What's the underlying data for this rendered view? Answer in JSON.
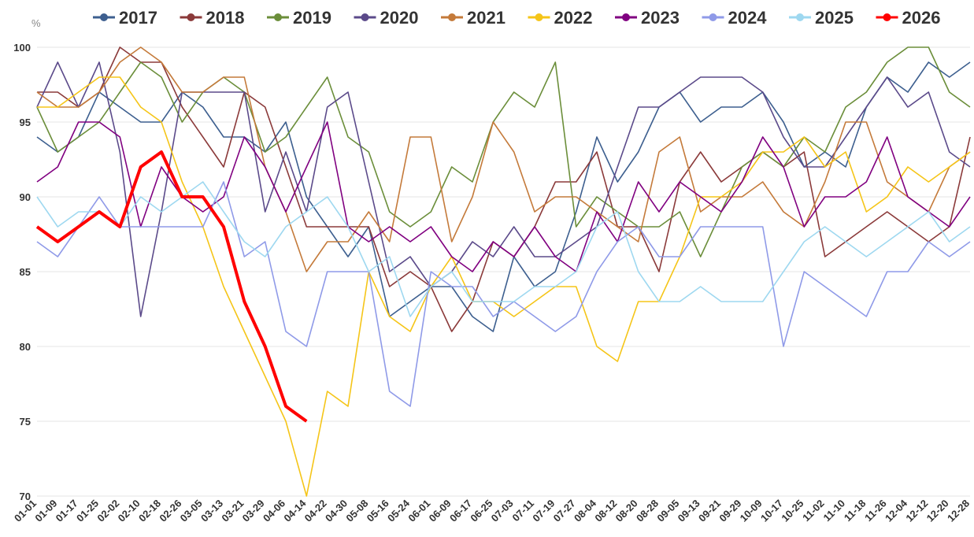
{
  "chart_data": {
    "type": "line",
    "y_unit": "%",
    "categories": [
      "01-01",
      "01-09",
      "01-17",
      "01-25",
      "02-02",
      "02-10",
      "02-18",
      "02-26",
      "03-05",
      "03-13",
      "03-21",
      "03-29",
      "04-06",
      "04-14",
      "04-22",
      "04-30",
      "05-08",
      "05-16",
      "05-24",
      "06-01",
      "06-09",
      "06-17",
      "06-25",
      "07-03",
      "07-11",
      "07-19",
      "07-27",
      "08-04",
      "08-12",
      "08-20",
      "08-28",
      "09-05",
      "09-13",
      "09-21",
      "09-29",
      "10-09",
      "10-17",
      "10-25",
      "11-02",
      "11-10",
      "11-18",
      "11-26",
      "12-04",
      "12-12",
      "12-20",
      "12-28"
    ],
    "ylim": [
      70,
      100
    ],
    "yticks": [
      70,
      75,
      80,
      85,
      90,
      95,
      100
    ],
    "grid": true,
    "series": [
      {
        "name": "2017",
        "color": "#3d5f8f",
        "values": [
          94,
          93,
          94,
          97,
          96,
          95,
          95,
          97,
          96,
          94,
          94,
          93,
          95,
          90,
          88,
          86,
          88,
          82,
          83,
          84,
          84,
          82,
          81,
          86,
          84,
          85,
          89,
          94,
          91,
          93,
          96,
          97,
          95,
          96,
          96,
          97,
          95,
          92,
          93,
          92,
          96,
          98,
          97,
          99,
          98,
          99
        ]
      },
      {
        "name": "2018",
        "color": "#8b3a3a",
        "values": [
          97,
          97,
          96,
          97,
          100,
          99,
          99,
          96,
          94,
          92,
          97,
          96,
          92,
          88,
          88,
          88,
          88,
          84,
          85,
          84,
          81,
          83,
          87,
          86,
          88,
          91,
          91,
          93,
          88,
          88,
          85,
          91,
          93,
          91,
          92,
          93,
          92,
          93,
          86,
          87,
          88,
          89,
          88,
          87,
          88,
          94
        ]
      },
      {
        "name": "2019",
        "color": "#6b8e3a",
        "values": [
          96,
          93,
          94,
          95,
          97,
          99,
          98,
          95,
          97,
          98,
          97,
          93,
          94,
          96,
          98,
          94,
          93,
          89,
          88,
          89,
          92,
          91,
          95,
          97,
          96,
          99,
          88,
          90,
          89,
          88,
          88,
          89,
          86,
          89,
          92,
          93,
          92,
          94,
          93,
          96,
          97,
          99,
          100,
          100,
          97,
          96
        ]
      },
      {
        "name": "2020",
        "color": "#5b4a8a",
        "values": [
          96,
          99,
          96,
          99,
          93,
          82,
          89,
          97,
          97,
          97,
          97,
          89,
          93,
          89,
          96,
          97,
          91,
          85,
          86,
          84,
          85,
          87,
          86,
          88,
          86,
          86,
          87,
          88,
          92,
          96,
          96,
          97,
          98,
          98,
          98,
          97,
          94,
          92,
          92,
          94,
          96,
          98,
          96,
          97,
          93,
          92
        ]
      },
      {
        "name": "2021",
        "color": "#c47a3a",
        "values": [
          97,
          96,
          96,
          97,
          99,
          100,
          99,
          97,
          97,
          98,
          98,
          92,
          89,
          85,
          87,
          87,
          89,
          87,
          94,
          94,
          87,
          90,
          95,
          93,
          89,
          90,
          90,
          89,
          88,
          87,
          93,
          94,
          89,
          90,
          90,
          91,
          89,
          88,
          91,
          95,
          95,
          91,
          90,
          89,
          92,
          93
        ]
      },
      {
        "name": "2022",
        "color": "#f5c518",
        "values": [
          96,
          96,
          97,
          98,
          98,
          96,
          95,
          91,
          88,
          84,
          81,
          78,
          75,
          70,
          77,
          76,
          85,
          82,
          81,
          84,
          86,
          83,
          83,
          82,
          83,
          84,
          84,
          80,
          79,
          83,
          83,
          86,
          90,
          90,
          91,
          93,
          93,
          94,
          92,
          93,
          89,
          90,
          92,
          91,
          92,
          93
        ]
      },
      {
        "name": "2023",
        "color": "#800080",
        "values": [
          91,
          92,
          95,
          95,
          94,
          88,
          92,
          90,
          89,
          90,
          94,
          92,
          89,
          92,
          95,
          88,
          87,
          88,
          87,
          88,
          86,
          85,
          87,
          86,
          88,
          86,
          85,
          89,
          87,
          91,
          89,
          91,
          90,
          89,
          91,
          94,
          92,
          88,
          90,
          90,
          91,
          94,
          90,
          89,
          88,
          90
        ]
      },
      {
        "name": "2024",
        "color": "#8f9ae8",
        "values": [
          87,
          86,
          88,
          90,
          88,
          88,
          88,
          88,
          88,
          91,
          86,
          87,
          81,
          80,
          85,
          85,
          85,
          77,
          76,
          85,
          84,
          84,
          82,
          83,
          82,
          81,
          82,
          85,
          87,
          88,
          86,
          86,
          88,
          88,
          88,
          88,
          80,
          85,
          84,
          83,
          82,
          85,
          85,
          87,
          86,
          87
        ]
      },
      {
        "name": "2025",
        "color": "#9ed8f0",
        "values": [
          90,
          88,
          89,
          89,
          88,
          90,
          89,
          90,
          91,
          89,
          87,
          86,
          88,
          89,
          90,
          88,
          85,
          86,
          82,
          84,
          85,
          83,
          83,
          83,
          84,
          84,
          85,
          88,
          89,
          85,
          83,
          83,
          84,
          83,
          83,
          83,
          85,
          87,
          88,
          87,
          86,
          87,
          88,
          89,
          87,
          88
        ]
      },
      {
        "name": "2026",
        "color": "#ff0000",
        "values": [
          88,
          87,
          88,
          89,
          88,
          92,
          93,
          90,
          90,
          88,
          83,
          80,
          76,
          75,
          null,
          null,
          null,
          null,
          null,
          null,
          null,
          null,
          null,
          null,
          null,
          null,
          null,
          null,
          null,
          null,
          null,
          null,
          null,
          null,
          null,
          null,
          null,
          null,
          null,
          null,
          null,
          null,
          null,
          null,
          null,
          null
        ]
      }
    ]
  }
}
